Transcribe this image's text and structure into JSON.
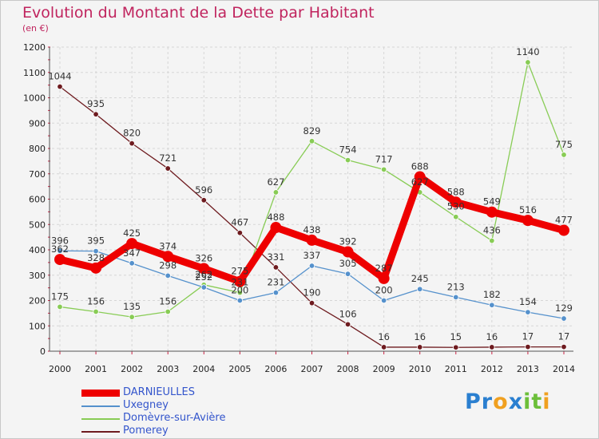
{
  "chart_data": {
    "type": "line",
    "title": "Evolution du Montant de la Dette par Habitant",
    "subtitle": "(en €)",
    "x": [
      "2000",
      "2001",
      "2002",
      "2003",
      "2004",
      "2005",
      "2006",
      "2007",
      "2008",
      "2009",
      "2010",
      "2011",
      "2012",
      "2013",
      "2014"
    ],
    "ylim": [
      0,
      1200
    ],
    "yticks": [
      0,
      100,
      200,
      300,
      400,
      500,
      600,
      700,
      800,
      900,
      1000,
      1100,
      1200
    ],
    "grid": true,
    "legend_position": "bottom-left",
    "series": [
      {
        "name": "Pomerey",
        "color": "#6e1b1f",
        "values": [
          1044,
          935,
          820,
          721,
          596,
          467,
          331,
          190,
          106,
          16,
          16,
          15,
          16,
          17,
          17
        ]
      },
      {
        "name": "Domèvre-sur-Avière",
        "color": "#88cc55",
        "values": [
          175,
          156,
          135,
          156,
          262,
          231,
          627,
          829,
          754,
          717,
          627,
          530,
          436,
          1140,
          775
        ]
      },
      {
        "name": "Uxegney",
        "color": "#5591cc",
        "values": [
          396,
          395,
          347,
          298,
          252,
          200,
          231,
          337,
          305,
          200,
          245,
          213,
          182,
          154,
          129
        ]
      },
      {
        "name": "DARNIEULLES",
        "color": "#ee0000",
        "values": [
          362,
          328,
          425,
          374,
          326,
          275,
          488,
          438,
          392,
          287,
          688,
          588,
          549,
          516,
          477
        ]
      }
    ]
  },
  "legend": [
    {
      "name": "DARNIEULLES",
      "color": "#ee0000"
    },
    {
      "name": "Uxegney",
      "color": "#5591cc"
    },
    {
      "name": "Domèvre-sur-Avière",
      "color": "#88cc55"
    },
    {
      "name": "Pomerey",
      "color": "#6e1b1f"
    }
  ],
  "logo": {
    "letters": [
      "P",
      "r",
      "o",
      "x",
      "i",
      "t",
      "i"
    ],
    "colors": [
      "#2a7fd0",
      "#2a7fd0",
      "#f0a020",
      "#2a7fd0",
      "#6cbf3a",
      "#6cbf3a",
      "#f0a020"
    ]
  }
}
